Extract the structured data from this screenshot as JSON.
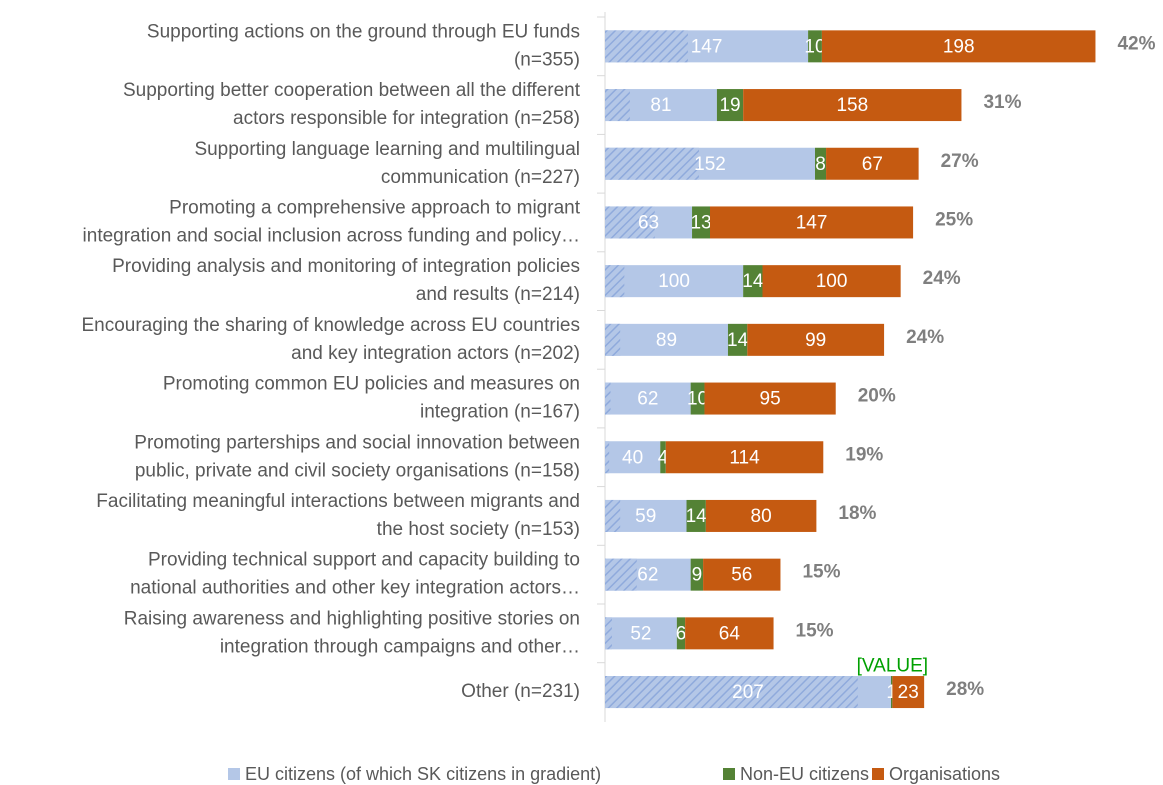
{
  "chart_data": {
    "type": "stacked-barh",
    "categories": [
      [
        "Supporting actions on the ground through EU funds",
        "(n=355)"
      ],
      [
        "Supporting better cooperation between all the different",
        "actors responsible for integration (n=258)"
      ],
      [
        "Supporting language learning and multilingual",
        "communication (n=227)"
      ],
      [
        "Promoting a comprehensive approach to migrant",
        "integration and social inclusion across funding and policy…"
      ],
      [
        "Providing analysis and monitoring of integration policies",
        "and results (n=214)"
      ],
      [
        "Encouraging the sharing of knowledge across EU countries",
        "and key integration actors (n=202)"
      ],
      [
        "Promoting common EU policies and measures on",
        "integration (n=167)"
      ],
      [
        "Promoting parterships and social innovation between",
        "public, private and civil society organisations (n=158)"
      ],
      [
        "Facilitating meaningful interactions between migrants and",
        "the host society (n=153)"
      ],
      [
        "Providing technical support and capacity building to",
        "national authorities and other key integration actors…"
      ],
      [
        "Raising awareness and highlighting positive stories on",
        "integration through campaigns and other…"
      ],
      [
        "Other (n=231)"
      ]
    ],
    "series": [
      {
        "name": "EU citizens (of which SK citizens in gradient)",
        "color": "#b4c7e7",
        "gradient_color": "#8faadc",
        "values": [
          147,
          81,
          152,
          63,
          100,
          89,
          62,
          40,
          59,
          62,
          52,
          207
        ],
        "gradient_values": [
          60,
          18,
          68,
          36,
          14,
          11,
          4,
          3,
          11,
          23,
          5,
          183
        ]
      },
      {
        "name": "Non-EU citizens",
        "color": "#548235",
        "values": [
          10,
          19,
          8,
          13,
          14,
          14,
          10,
          4,
          14,
          9,
          6,
          1
        ]
      },
      {
        "name": "Organisations",
        "color": "#c55a11",
        "values": [
          198,
          158,
          67,
          147,
          100,
          99,
          95,
          114,
          80,
          56,
          64,
          23
        ]
      }
    ],
    "percentages": {
      "values": [
        42,
        31,
        27,
        25,
        24,
        24,
        20,
        19,
        18,
        15,
        15,
        28
      ],
      "value_labels": [
        "42%",
        "31%",
        "27%",
        "25%",
        "24%",
        "24%",
        "20%",
        "19%",
        "18%",
        "15%",
        "15%",
        "28%"
      ]
    },
    "annotation": {
      "text": "[VALUE]",
      "color": "#00a000"
    },
    "xlim": [
      0,
      380
    ],
    "legend": "bottom"
  }
}
